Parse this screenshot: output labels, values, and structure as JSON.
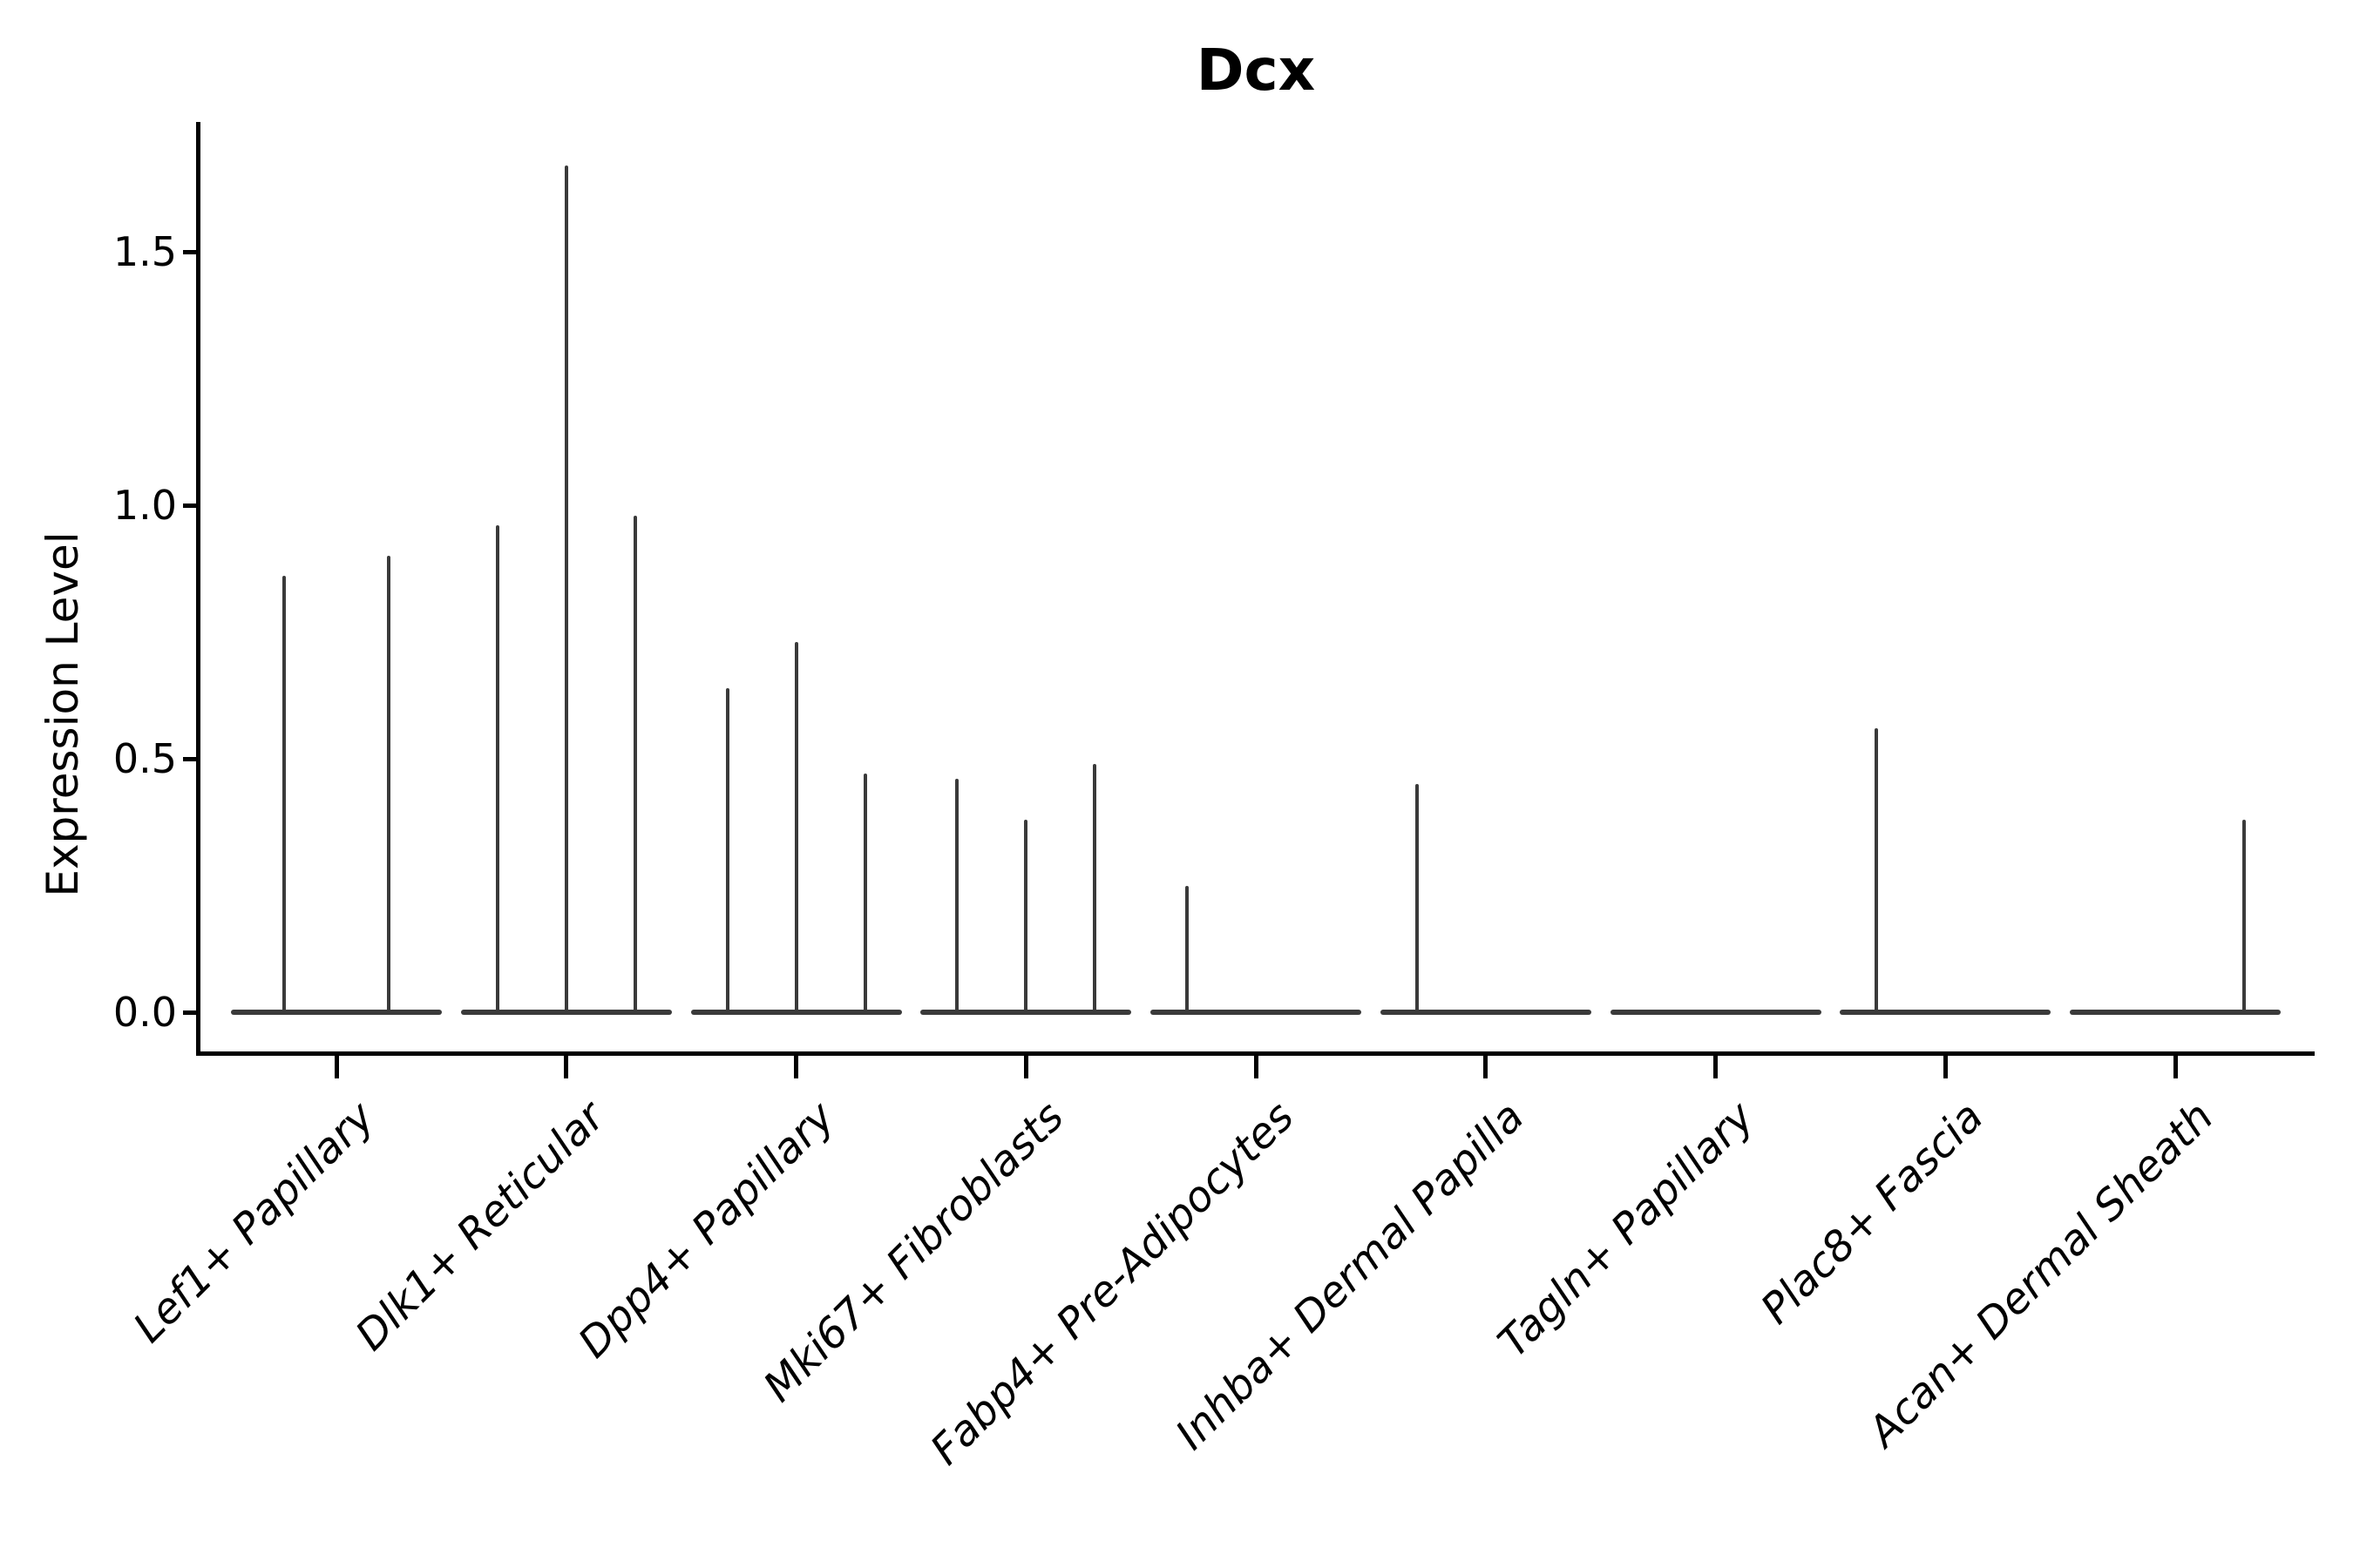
{
  "chart_data": {
    "type": "violin",
    "title": "Dcx",
    "ylabel": "Expression Level",
    "xlabel": "",
    "ytick_labels": [
      "0.0",
      "0.5",
      "1.0",
      "1.5"
    ],
    "yticks": [
      0.0,
      0.5,
      1.0,
      1.5
    ],
    "ylim": [
      -0.08,
      1.76
    ],
    "grid": false,
    "legend": "none",
    "colors": {
      "violin_line": "#3a3a3a",
      "axis": "#000000",
      "background": "#ffffff"
    },
    "categories": [
      "Lef1+ Papillary",
      "Dlk1+ Reticular",
      "Dpp4+ Papillary",
      "Mki67+ Fibroblasts",
      "Fabp4+ Pre-Adipocytes",
      "Inhba+ Dermal Papilla",
      "Tagln+ Papillary",
      "Plac8+ Fascia",
      "Acan+ Dermal Sheath"
    ],
    "violins": [
      {
        "label": "Lef1+ Papillary",
        "spikes": [
          {
            "dx": -60,
            "value": 0.86
          },
          {
            "dx": 60,
            "value": 0.9
          }
        ]
      },
      {
        "label": "Dlk1+ Reticular",
        "spikes": [
          {
            "dx": -79,
            "value": 0.96
          },
          {
            "dx": 0,
            "value": 1.67
          },
          {
            "dx": 79,
            "value": 0.98
          }
        ]
      },
      {
        "label": "Dpp4+ Papillary",
        "spikes": [
          {
            "dx": -79,
            "value": 0.64
          },
          {
            "dx": 0,
            "value": 0.73
          },
          {
            "dx": 79,
            "value": 0.47
          }
        ]
      },
      {
        "label": "Mki67+ Fibroblasts",
        "spikes": [
          {
            "dx": -79,
            "value": 0.46
          },
          {
            "dx": 0,
            "value": 0.38
          },
          {
            "dx": 79,
            "value": 0.49
          }
        ]
      },
      {
        "label": "Fabp4+ Pre-Adipocytes",
        "spikes": [
          {
            "dx": -79,
            "value": 0.25
          }
        ]
      },
      {
        "label": "Inhba+ Dermal Papilla",
        "spikes": [
          {
            "dx": -79,
            "value": 0.45
          }
        ]
      },
      {
        "label": "Tagln+ Papillary",
        "spikes": []
      },
      {
        "label": "Plac8+ Fascia",
        "spikes": [
          {
            "dx": -79,
            "value": 0.56
          }
        ]
      },
      {
        "label": "Acan+ Dermal Sheath",
        "spikes": [
          {
            "dx": 79,
            "value": 0.38
          }
        ]
      }
    ]
  }
}
